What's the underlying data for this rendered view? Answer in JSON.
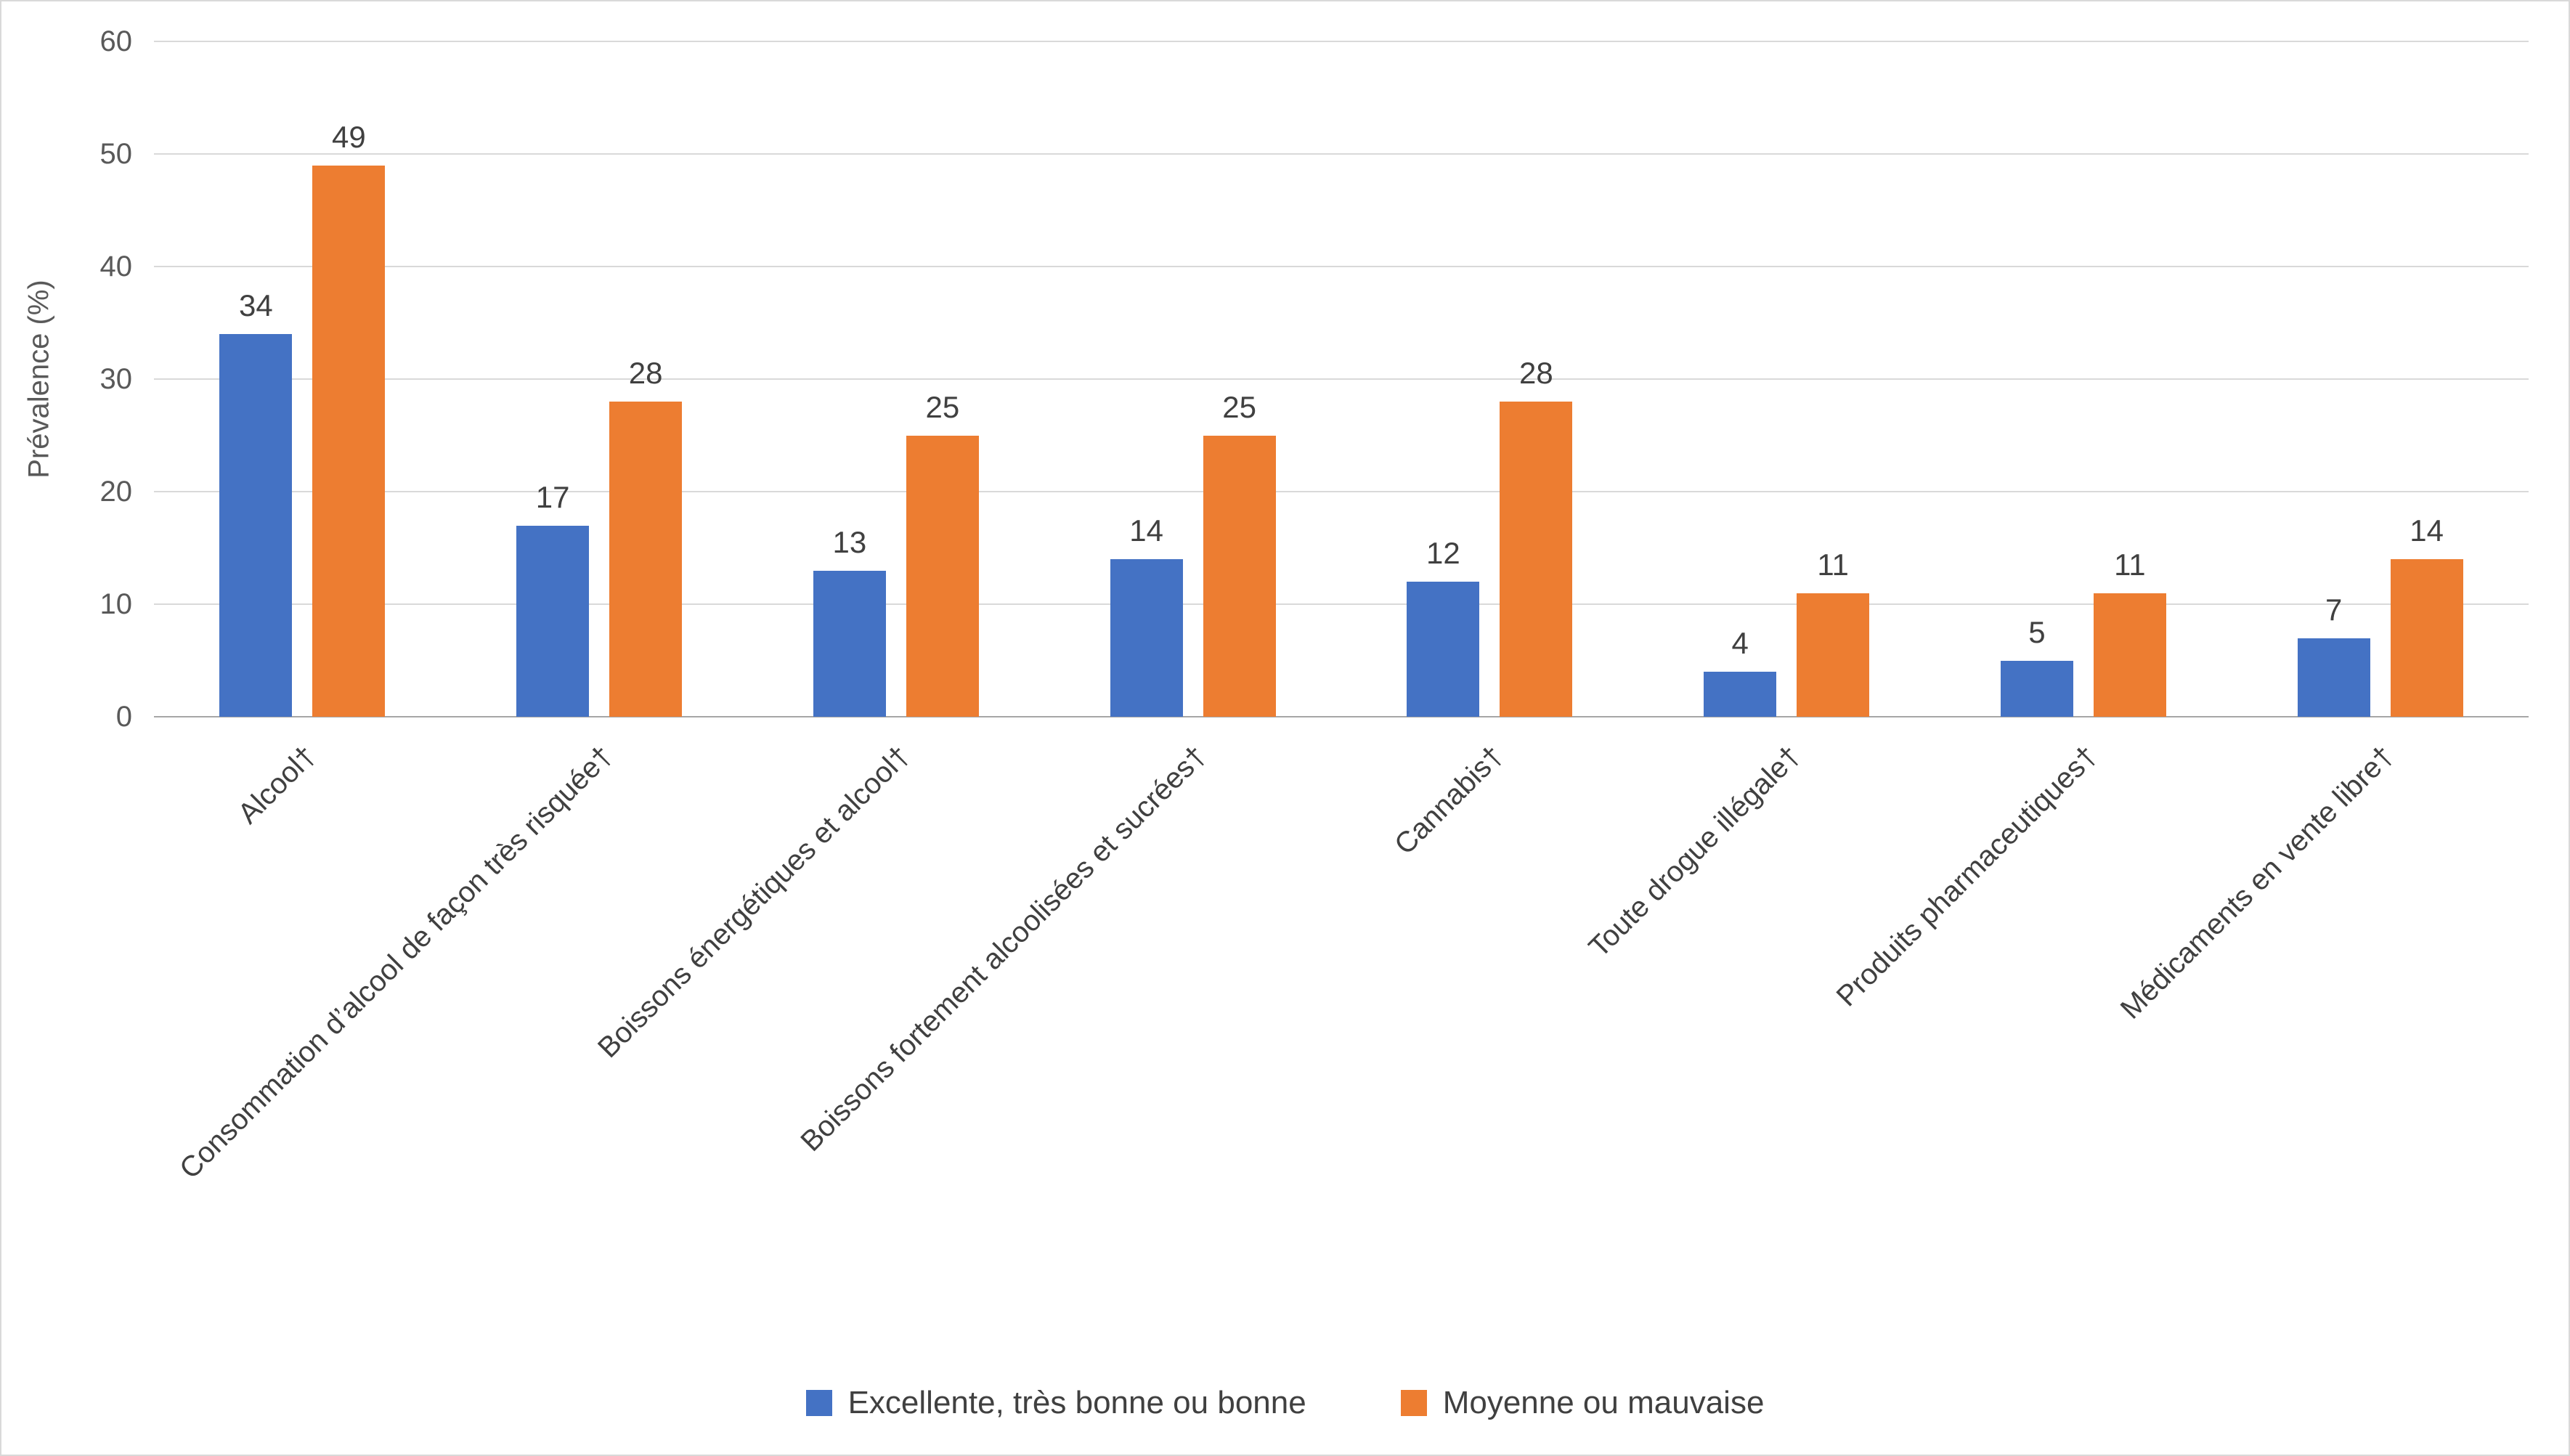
{
  "chart_data": {
    "type": "bar",
    "title": "",
    "xlabel": "",
    "ylabel": "Prévalence (%)",
    "ylim": [
      0,
      60
    ],
    "yticks": [
      0,
      10,
      20,
      30,
      40,
      50,
      60
    ],
    "grid": true,
    "legend_position": "bottom",
    "categories": [
      "Alcool†",
      "Consommation d’alcool de façon très risquée†",
      "Boissons énergétiques et alcool†",
      "Boissons fortement alcoolisées et sucrées†",
      "Cannabis†",
      "Toute drogue illégale†",
      "Produits pharmaceutiques†",
      "Médicaments en vente libre†"
    ],
    "series": [
      {
        "name": "Excellente, très bonne ou bonne",
        "color": "#4472C4",
        "values": [
          34,
          17,
          13,
          14,
          12,
          4,
          5,
          7
        ]
      },
      {
        "name": "Moyenne ou mauvaise",
        "color": "#ED7D31",
        "values": [
          49,
          28,
          25,
          25,
          28,
          11,
          11,
          14
        ]
      }
    ]
  }
}
